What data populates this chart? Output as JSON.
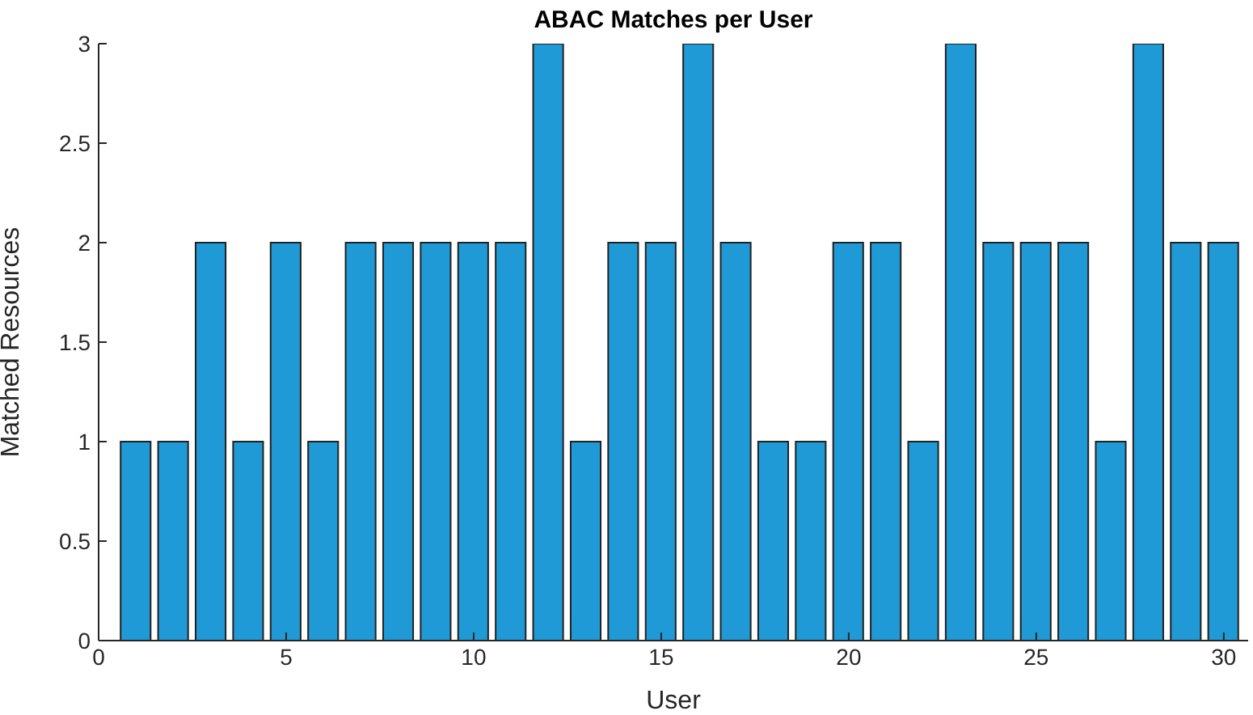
{
  "chart_data": {
    "type": "bar",
    "title": "ABAC Matches per User",
    "xlabel": "User",
    "ylabel": "Matched Resources",
    "x": [
      1,
      2,
      3,
      4,
      5,
      6,
      7,
      8,
      9,
      10,
      11,
      12,
      13,
      14,
      15,
      16,
      17,
      18,
      19,
      20,
      21,
      22,
      23,
      24,
      25,
      26,
      27,
      28,
      29,
      30
    ],
    "values": [
      1,
      1,
      2,
      1,
      2,
      1,
      2,
      2,
      2,
      2,
      2,
      3,
      1,
      2,
      2,
      3,
      2,
      1,
      1,
      2,
      2,
      1,
      3,
      2,
      2,
      2,
      1,
      3,
      2,
      2
    ],
    "color": "#1f9ad6",
    "xlim": [
      0,
      30.65
    ],
    "xticks": [
      0,
      5,
      10,
      15,
      20,
      25,
      30
    ],
    "ylim": [
      0,
      3
    ],
    "yticks": [
      0,
      0.5,
      1,
      1.5,
      2,
      2.5,
      3
    ],
    "grid": false,
    "legend": false
  }
}
